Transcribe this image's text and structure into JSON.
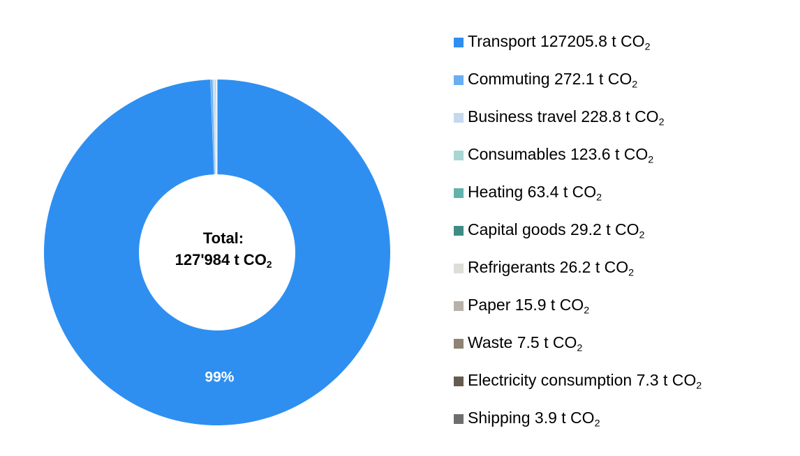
{
  "chart_data": {
    "type": "pie",
    "donut": true,
    "center_label": {
      "line1": "Total:",
      "line2_prefix": "127'984 t CO",
      "line2_subscript": "2"
    },
    "unit_prefix": "t CO",
    "unit_subscript": "2",
    "slices": [
      {
        "label": "Transport",
        "value": 127205.8,
        "value_text": "127205.8",
        "color": "#2e8ff0",
        "pct_label": "99%"
      },
      {
        "label": "Commuting",
        "value": 272.1,
        "value_text": "272.1",
        "color": "#6aaef2",
        "pct_label": ""
      },
      {
        "label": "Business travel",
        "value": 228.8,
        "value_text": "228.8",
        "color": "#c5d8ee",
        "pct_label": ""
      },
      {
        "label": "Consumables",
        "value": 123.6,
        "value_text": "123.6",
        "color": "#a8d6d3",
        "pct_label": ""
      },
      {
        "label": "Heating",
        "value": 63.4,
        "value_text": "63.4",
        "color": "#62b3aa",
        "pct_label": ""
      },
      {
        "label": "Capital goods",
        "value": 29.2,
        "value_text": "29.2",
        "color": "#3f8c84",
        "pct_label": ""
      },
      {
        "label": "Refrigerants",
        "value": 26.2,
        "value_text": "26.2",
        "color": "#deddd8",
        "pct_label": ""
      },
      {
        "label": "Paper",
        "value": 15.9,
        "value_text": "15.9",
        "color": "#b7b1aa",
        "pct_label": ""
      },
      {
        "label": "Waste",
        "value": 7.5,
        "value_text": "7.5",
        "color": "#8e8374",
        "pct_label": ""
      },
      {
        "label": "Electricity consumption",
        "value": 7.3,
        "value_text": "7.3",
        "color": "#665b4f",
        "pct_label": ""
      },
      {
        "label": "Shipping",
        "value": 3.9,
        "value_text": "3.9",
        "color": "#6e6e6e",
        "pct_label": ""
      }
    ],
    "pct_label_color": "#ffffff",
    "legend_position": "right",
    "title": "",
    "xlabel": "",
    "ylabel": ""
  }
}
